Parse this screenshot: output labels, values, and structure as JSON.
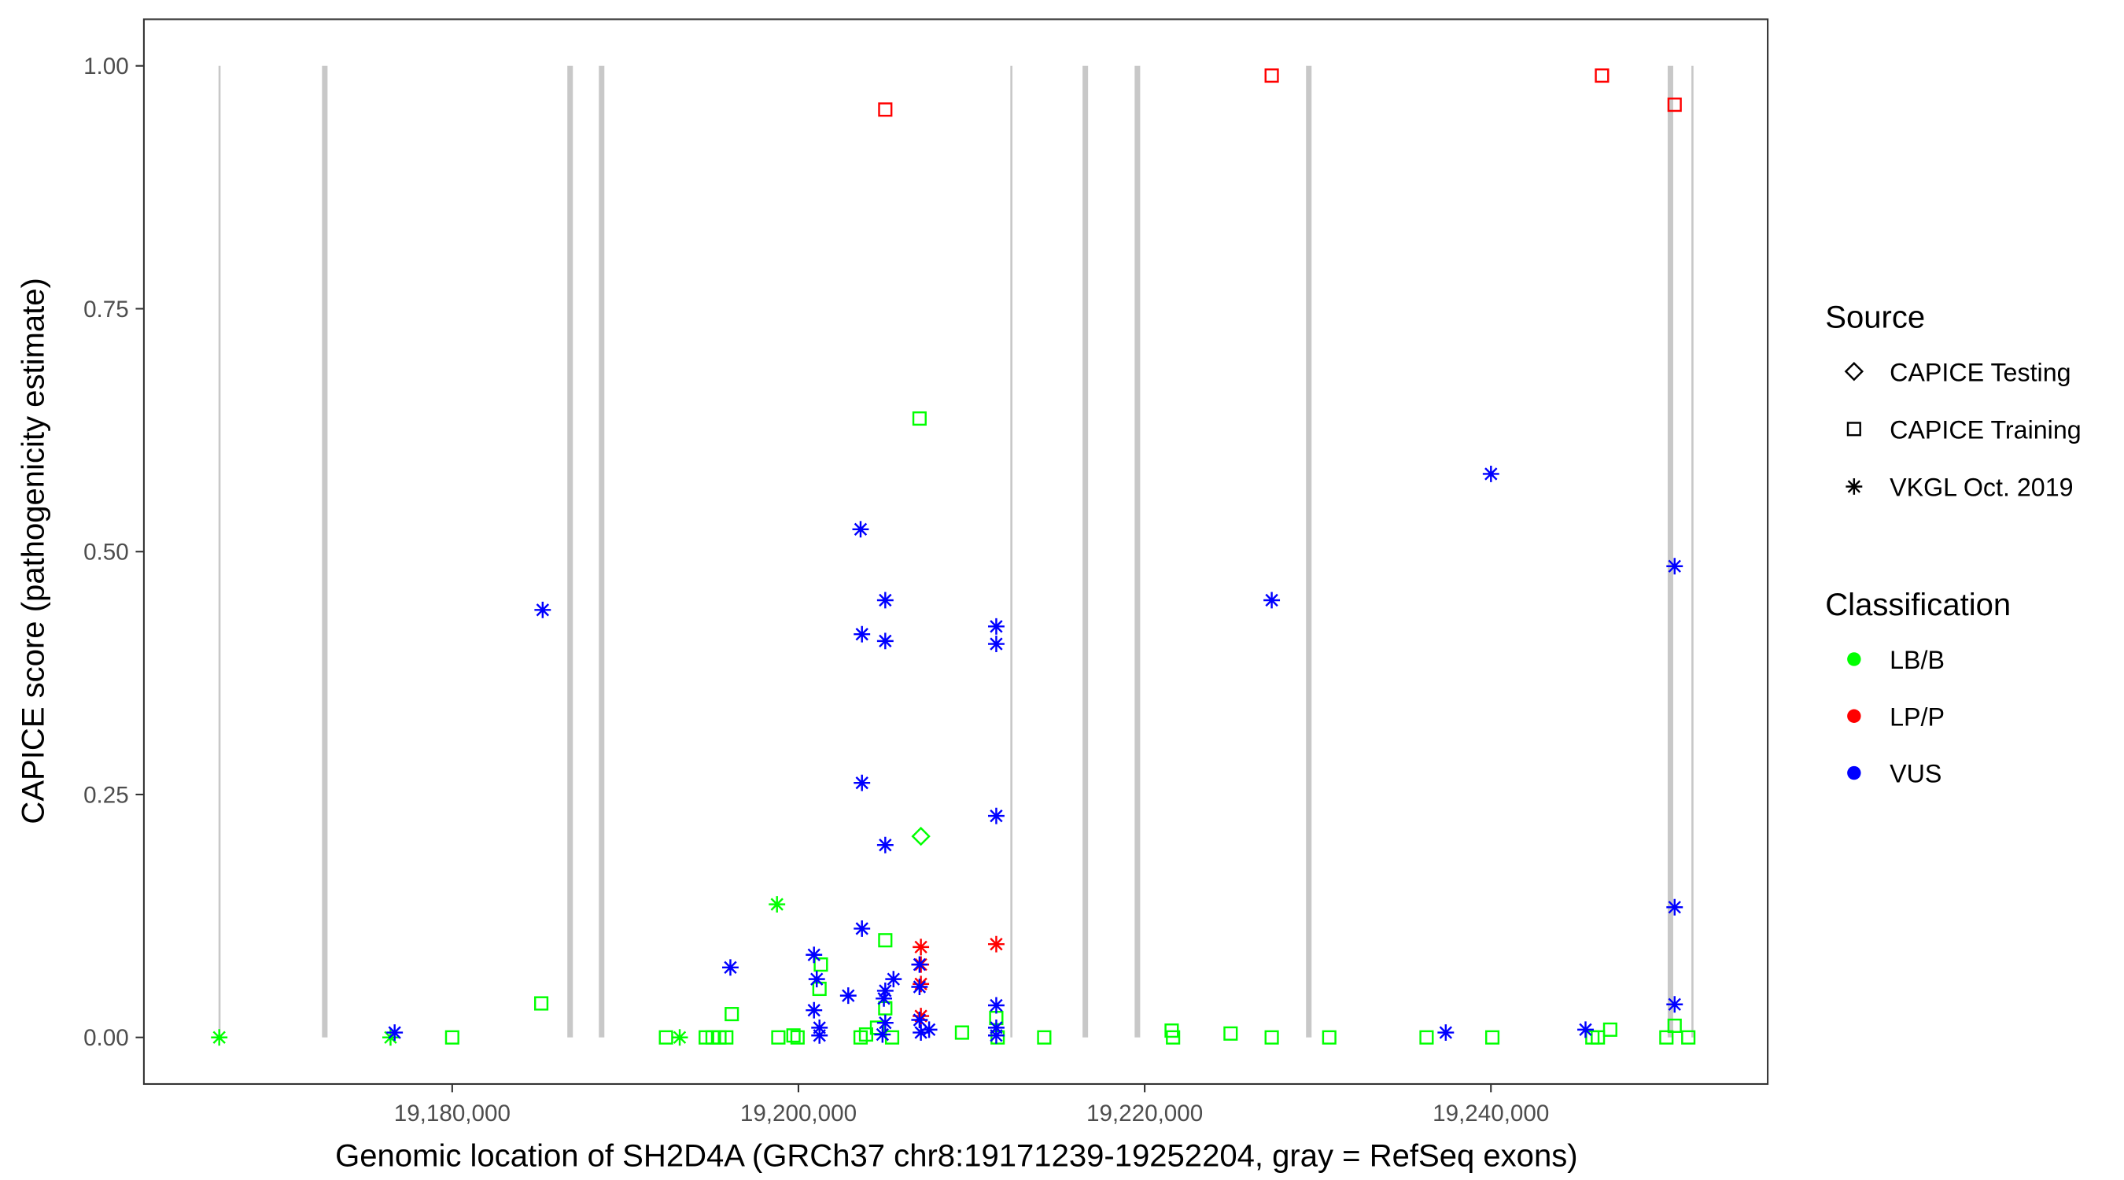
{
  "chart_data": {
    "type": "scatter",
    "xlabel": "Genomic location of SH2D4A (GRCh37 chr8:19171239-19252204, gray = RefSeq exons)",
    "ylabel": "CAPICE score (pathogenicity estimate)",
    "xlim": [
      19163100,
      19256900
    ],
    "ylim": [
      -0.045,
      1.045
    ],
    "x_ticks": [
      19180000,
      19200000,
      19220000,
      19240000
    ],
    "x_tick_labels": [
      "19,180,000",
      "19,200,000",
      "19,220,000",
      "19,240,000"
    ],
    "y_ticks": [
      0,
      0.25,
      0.5,
      0.75,
      1.0
    ],
    "y_tick_labels": [
      "0.00",
      "0.25",
      "0.50",
      "0.75",
      "1.00"
    ],
    "grid": false,
    "legend_placement": "right",
    "exons": [
      [
        19166500,
        19166620
      ],
      [
        19172480,
        19172800
      ],
      [
        19186650,
        19186970
      ],
      [
        19188470,
        19188790
      ],
      [
        19212240,
        19212360
      ],
      [
        19216410,
        19216730
      ],
      [
        19219420,
        19219740
      ],
      [
        19229320,
        19229640
      ],
      [
        19250210,
        19250530
      ],
      [
        19251580,
        19251700
      ]
    ],
    "legend": {
      "source_title": "Source",
      "sources": [
        {
          "key": "testing",
          "label": "CAPICE Testing",
          "shape": "diamond"
        },
        {
          "key": "training",
          "label": "CAPICE Training",
          "shape": "square"
        },
        {
          "key": "vkgl",
          "label": "VKGL Oct. 2019",
          "shape": "asterisk"
        }
      ],
      "class_title": "Classification",
      "classes": [
        {
          "key": "LB/B",
          "label": "LB/B",
          "color": "#00ff00"
        },
        {
          "key": "LP/P",
          "label": "LP/P",
          "color": "#ff0000"
        },
        {
          "key": "VUS",
          "label": "VUS",
          "color": "#0000ff"
        }
      ]
    },
    "points": [
      {
        "x": 19166543,
        "y": 0,
        "source": "vkgl",
        "class": "LB/B"
      },
      {
        "x": 19176438,
        "y": 0,
        "source": "vkgl",
        "class": "LB/B"
      },
      {
        "x": 19193141,
        "y": 0,
        "source": "vkgl",
        "class": "LB/B"
      },
      {
        "x": 19198761,
        "y": 0.137,
        "source": "vkgl",
        "class": "LB/B"
      },
      {
        "x": 19180000,
        "y": 0,
        "source": "training",
        "class": "LB/B"
      },
      {
        "x": 19185145,
        "y": 0.035,
        "source": "training",
        "class": "LB/B"
      },
      {
        "x": 19192349,
        "y": 0,
        "source": "training",
        "class": "LB/B"
      },
      {
        "x": 19194645,
        "y": 0,
        "source": "training",
        "class": "LB/B"
      },
      {
        "x": 19195040,
        "y": 0,
        "source": "training",
        "class": "LB/B"
      },
      {
        "x": 19195436,
        "y": 0,
        "source": "training",
        "class": "LB/B"
      },
      {
        "x": 19195832,
        "y": 0,
        "source": "training",
        "class": "LB/B"
      },
      {
        "x": 19196149,
        "y": 0.024,
        "source": "training",
        "class": "LB/B"
      },
      {
        "x": 19198840,
        "y": 0,
        "source": "training",
        "class": "LB/B"
      },
      {
        "x": 19199711,
        "y": 0.002,
        "source": "training",
        "class": "LB/B"
      },
      {
        "x": 19199948,
        "y": 0,
        "source": "training",
        "class": "LB/B"
      },
      {
        "x": 19201215,
        "y": 0.05,
        "source": "training",
        "class": "LB/B"
      },
      {
        "x": 19201294,
        "y": 0.075,
        "source": "training",
        "class": "LB/B"
      },
      {
        "x": 19203590,
        "y": 0,
        "source": "training",
        "class": "LB/B"
      },
      {
        "x": 19203906,
        "y": 0.003,
        "source": "training",
        "class": "LB/B"
      },
      {
        "x": 19204540,
        "y": 0.01,
        "source": "training",
        "class": "LB/B"
      },
      {
        "x": 19205015,
        "y": 0.1,
        "source": "training",
        "class": "LB/B"
      },
      {
        "x": 19205015,
        "y": 0.03,
        "source": "training",
        "class": "LB/B"
      },
      {
        "x": 19205410,
        "y": 0,
        "source": "training",
        "class": "LB/B"
      },
      {
        "x": 19206994,
        "y": 0.637,
        "source": "training",
        "class": "LB/B"
      },
      {
        "x": 19209448,
        "y": 0.005,
        "source": "training",
        "class": "LB/B"
      },
      {
        "x": 19211506,
        "y": 0,
        "source": "training",
        "class": "LB/B"
      },
      {
        "x": 19211427,
        "y": 0.02,
        "source": "training",
        "class": "LB/B"
      },
      {
        "x": 19214197,
        "y": 0,
        "source": "training",
        "class": "LB/B"
      },
      {
        "x": 19221559,
        "y": 0.007,
        "source": "training",
        "class": "LB/B"
      },
      {
        "x": 19221638,
        "y": 0,
        "source": "training",
        "class": "LB/B"
      },
      {
        "x": 19224963,
        "y": 0.004,
        "source": "training",
        "class": "LB/B"
      },
      {
        "x": 19227338,
        "y": 0,
        "source": "training",
        "class": "LB/B"
      },
      {
        "x": 19230662,
        "y": 0,
        "source": "training",
        "class": "LB/B"
      },
      {
        "x": 19236283,
        "y": 0,
        "source": "training",
        "class": "LB/B"
      },
      {
        "x": 19240082,
        "y": 0,
        "source": "training",
        "class": "LB/B"
      },
      {
        "x": 19245861,
        "y": 0,
        "source": "training",
        "class": "LB/B"
      },
      {
        "x": 19246178,
        "y": 0,
        "source": "training",
        "class": "LB/B"
      },
      {
        "x": 19246890,
        "y": 0.008,
        "source": "training",
        "class": "LB/B"
      },
      {
        "x": 19250136,
        "y": 0,
        "source": "training",
        "class": "LB/B"
      },
      {
        "x": 19250611,
        "y": 0.012,
        "source": "training",
        "class": "LB/B"
      },
      {
        "x": 19251402,
        "y": 0,
        "source": "training",
        "class": "LB/B"
      },
      {
        "x": 19207073,
        "y": 0.207,
        "source": "testing",
        "class": "LB/B"
      },
      {
        "x": 19205015,
        "y": 0.955,
        "source": "training",
        "class": "LP/P"
      },
      {
        "x": 19227338,
        "y": 0.99,
        "source": "training",
        "class": "LP/P"
      },
      {
        "x": 19246415,
        "y": 0.99,
        "source": "training",
        "class": "LP/P"
      },
      {
        "x": 19250611,
        "y": 0.96,
        "source": "training",
        "class": "LP/P"
      },
      {
        "x": 19207073,
        "y": 0.093,
        "source": "vkgl",
        "class": "LP/P"
      },
      {
        "x": 19207073,
        "y": 0.075,
        "source": "vkgl",
        "class": "LP/P"
      },
      {
        "x": 19207073,
        "y": 0.055,
        "source": "vkgl",
        "class": "LP/P"
      },
      {
        "x": 19207073,
        "y": 0.022,
        "source": "vkgl",
        "class": "LP/P"
      },
      {
        "x": 19211427,
        "y": 0.096,
        "source": "vkgl",
        "class": "LP/P"
      },
      {
        "x": 19176675,
        "y": 0.005,
        "source": "vkgl",
        "class": "VUS"
      },
      {
        "x": 19185225,
        "y": 0.44,
        "source": "vkgl",
        "class": "VUS"
      },
      {
        "x": 19196069,
        "y": 0.072,
        "source": "vkgl",
        "class": "VUS"
      },
      {
        "x": 19200898,
        "y": 0.085,
        "source": "vkgl",
        "class": "VUS"
      },
      {
        "x": 19201057,
        "y": 0.06,
        "source": "vkgl",
        "class": "VUS"
      },
      {
        "x": 19200898,
        "y": 0.028,
        "source": "vkgl",
        "class": "VUS"
      },
      {
        "x": 19201215,
        "y": 0.01,
        "source": "vkgl",
        "class": "VUS"
      },
      {
        "x": 19201215,
        "y": 0.002,
        "source": "vkgl",
        "class": "VUS"
      },
      {
        "x": 19202877,
        "y": 0.043,
        "source": "vkgl",
        "class": "VUS"
      },
      {
        "x": 19203590,
        "y": 0.523,
        "source": "vkgl",
        "class": "VUS"
      },
      {
        "x": 19203669,
        "y": 0.415,
        "source": "vkgl",
        "class": "VUS"
      },
      {
        "x": 19203669,
        "y": 0.262,
        "source": "vkgl",
        "class": "VUS"
      },
      {
        "x": 19203669,
        "y": 0.112,
        "source": "vkgl",
        "class": "VUS"
      },
      {
        "x": 19205015,
        "y": 0.45,
        "source": "vkgl",
        "class": "VUS"
      },
      {
        "x": 19205015,
        "y": 0.408,
        "source": "vkgl",
        "class": "VUS"
      },
      {
        "x": 19205015,
        "y": 0.198,
        "source": "vkgl",
        "class": "VUS"
      },
      {
        "x": 19205015,
        "y": 0.048,
        "source": "vkgl",
        "class": "VUS"
      },
      {
        "x": 19204935,
        "y": 0.04,
        "source": "vkgl",
        "class": "VUS"
      },
      {
        "x": 19205015,
        "y": 0.015,
        "source": "vkgl",
        "class": "VUS"
      },
      {
        "x": 19204856,
        "y": 0.003,
        "source": "vkgl",
        "class": "VUS"
      },
      {
        "x": 19205490,
        "y": 0.06,
        "source": "vkgl",
        "class": "VUS"
      },
      {
        "x": 19206994,
        "y": 0.075,
        "source": "vkgl",
        "class": "VUS"
      },
      {
        "x": 19206994,
        "y": 0.052,
        "source": "vkgl",
        "class": "VUS"
      },
      {
        "x": 19206994,
        "y": 0.018,
        "source": "vkgl",
        "class": "VUS"
      },
      {
        "x": 19207073,
        "y": 0.005,
        "source": "vkgl",
        "class": "VUS"
      },
      {
        "x": 19207548,
        "y": 0.008,
        "source": "vkgl",
        "class": "VUS"
      },
      {
        "x": 19211427,
        "y": 0.423,
        "source": "vkgl",
        "class": "VUS"
      },
      {
        "x": 19211427,
        "y": 0.405,
        "source": "vkgl",
        "class": "VUS"
      },
      {
        "x": 19211427,
        "y": 0.228,
        "source": "vkgl",
        "class": "VUS"
      },
      {
        "x": 19211427,
        "y": 0.033,
        "source": "vkgl",
        "class": "VUS"
      },
      {
        "x": 19211427,
        "y": 0.01,
        "source": "vkgl",
        "class": "VUS"
      },
      {
        "x": 19211427,
        "y": 0.002,
        "source": "vkgl",
        "class": "VUS"
      },
      {
        "x": 19227338,
        "y": 0.45,
        "source": "vkgl",
        "class": "VUS"
      },
      {
        "x": 19237391,
        "y": 0.005,
        "source": "vkgl",
        "class": "VUS"
      },
      {
        "x": 19240003,
        "y": 0.58,
        "source": "vkgl",
        "class": "VUS"
      },
      {
        "x": 19245465,
        "y": 0.008,
        "source": "vkgl",
        "class": "VUS"
      },
      {
        "x": 19250611,
        "y": 0.485,
        "source": "vkgl",
        "class": "VUS"
      },
      {
        "x": 19250611,
        "y": 0.134,
        "source": "vkgl",
        "class": "VUS"
      },
      {
        "x": 19250611,
        "y": 0.034,
        "source": "vkgl",
        "class": "VUS"
      }
    ]
  }
}
